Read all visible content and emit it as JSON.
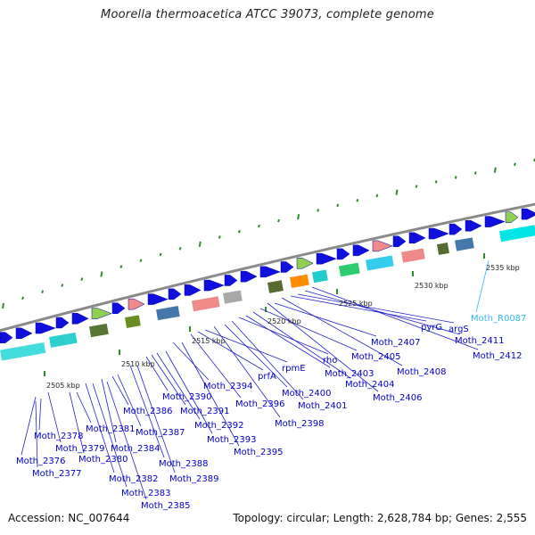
{
  "title": "Moorella thermoacetica ATCC 39073, complete genome",
  "footer": {
    "accession": "Accession: NC_007644",
    "stats": "Topology: circular; Length: 2,628,784 bp; Genes: 2,555"
  },
  "colors": {
    "backbone": "#8a8a8a",
    "cds": "#1010dd",
    "label": "#0000cc",
    "rna_label": "#33bbee",
    "tick": "#2e8b2e",
    "leader": "#2222cc"
  },
  "kbp_labels": [
    "2505 kbp",
    "2510 kbp",
    "2515 kbp",
    "2520 kbp",
    "2525 kbp",
    "2530 kbp",
    "2535 kbp"
  ],
  "gene_labels": [
    "Moth_2376",
    "Moth_2377",
    "Moth_2378",
    "Moth_2379",
    "Moth_2380",
    "Moth_2381",
    "Moth_2382",
    "Moth_2383",
    "Moth_2384",
    "Moth_2385",
    "Moth_2386",
    "Moth_2387",
    "Moth_2388",
    "Moth_2389",
    "Moth_2390",
    "Moth_2391",
    "Moth_2392",
    "Moth_2393",
    "Moth_2394",
    "Moth_2395",
    "Moth_2396",
    "prfA",
    "rpmE",
    "Moth_2398",
    "Moth_2400",
    "Moth_2401",
    "rho",
    "Moth_2403",
    "Moth_2404",
    "Moth_2405",
    "Moth_2406",
    "Moth_2407",
    "Moth_2408",
    "pyrG",
    "argS",
    "Moth_2411",
    "Moth_2412",
    "Moth_R0087"
  ]
}
